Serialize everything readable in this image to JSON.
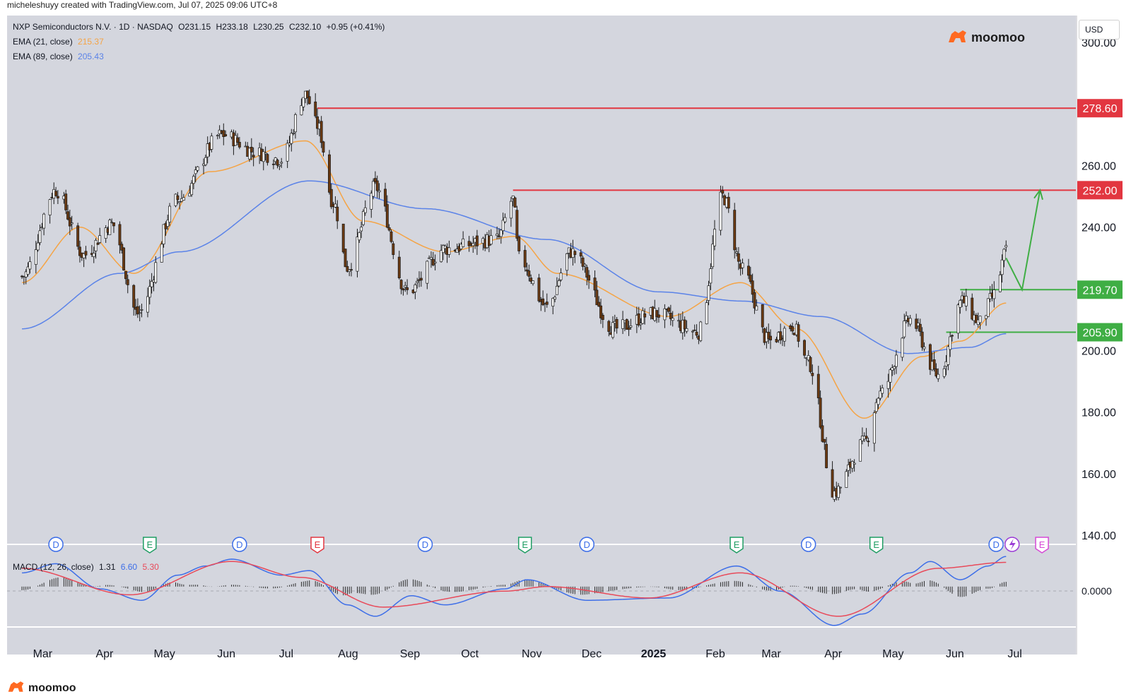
{
  "credit": "micheleshuyy created with TradingView.com, Jul 07, 2025 09:06 UTC+8",
  "legend": {
    "symbol": "NXP Semiconductors N.V. · 1D · NASDAQ",
    "open": "O231.15",
    "high": "H233.18",
    "low": "L230.25",
    "close": "C232.10",
    "change": "+0.95 (+0.41%)",
    "ema21_label": "EMA (21, close)",
    "ema21_value": "215.37",
    "ema89_label": "EMA (89, close)",
    "ema89_value": "205.43"
  },
  "brand": {
    "name": "moomoo",
    "logo_icon": "moomoo-bull-icon"
  },
  "currency": "USD",
  "macd": {
    "label": "MACD (12, 26, close)",
    "hist": "1.31",
    "macd": "6.60",
    "signal": "5.30",
    "zero_label": "0.0000"
  },
  "colors": {
    "up": "#ffffff",
    "down": "#6b3a12",
    "ema21": "#f5a445",
    "ema89": "#5b83e8",
    "resistance": "#e23640",
    "support": "#3fae44",
    "projection": "#3fae44",
    "macd_line": "#3d6ee8",
    "signal_line": "#e84a5a",
    "bg": "#d4d6de"
  },
  "chart_data": [
    {
      "type": "candlestick",
      "title": "",
      "x_tick_labels": [
        "Mar",
        "Apr",
        "May",
        "Jun",
        "Jul",
        "Aug",
        "Sep",
        "Oct",
        "Nov",
        "Dec",
        "2025",
        "Feb",
        "Mar",
        "Apr",
        "May",
        "Jun",
        "Jul"
      ],
      "y_tick_labels": [
        "300.00",
        "260.00",
        "240.00",
        "200.00",
        "180.00",
        "160.00",
        "140.00"
      ],
      "ylim": [
        135,
        305
      ],
      "series": [
        {
          "name": "NXP",
          "anchors": [
            {
              "date": "2024-02-26",
              "value": 224
            },
            {
              "date": "2024-03-14",
              "value": 252
            },
            {
              "date": "2024-03-28",
              "value": 231
            },
            {
              "date": "2024-04-11",
              "value": 241
            },
            {
              "date": "2024-04-24",
              "value": 212
            },
            {
              "date": "2024-05-14",
              "value": 249
            },
            {
              "date": "2024-06-05",
              "value": 270
            },
            {
              "date": "2024-06-24",
              "value": 264
            },
            {
              "date": "2024-07-05",
              "value": 262
            },
            {
              "date": "2024-07-17",
              "value": 283
            },
            {
              "date": "2024-07-23",
              "value": 273
            },
            {
              "date": "2024-07-31",
              "value": 248
            },
            {
              "date": "2024-08-07",
              "value": 227
            },
            {
              "date": "2024-08-21",
              "value": 253
            },
            {
              "date": "2024-09-06",
              "value": 219
            },
            {
              "date": "2024-09-25",
              "value": 233
            },
            {
              "date": "2024-10-21",
              "value": 236
            },
            {
              "date": "2024-10-29",
              "value": 249
            },
            {
              "date": "2024-11-01",
              "value": 230
            },
            {
              "date": "2024-11-15",
              "value": 214
            },
            {
              "date": "2024-11-27",
              "value": 232
            },
            {
              "date": "2024-12-19",
              "value": 207
            },
            {
              "date": "2025-01-08",
              "value": 212
            },
            {
              "date": "2025-01-30",
              "value": 206
            },
            {
              "date": "2025-02-11",
              "value": 250
            },
            {
              "date": "2025-02-21",
              "value": 226
            },
            {
              "date": "2025-03-06",
              "value": 203
            },
            {
              "date": "2025-03-18",
              "value": 208
            },
            {
              "date": "2025-03-26",
              "value": 196
            },
            {
              "date": "2025-04-08",
              "value": 154
            },
            {
              "date": "2025-04-23",
              "value": 170
            },
            {
              "date": "2025-05-01",
              "value": 186
            },
            {
              "date": "2025-05-16",
              "value": 210
            },
            {
              "date": "2025-05-30",
              "value": 192
            },
            {
              "date": "2025-06-11",
              "value": 216
            },
            {
              "date": "2025-06-20",
              "value": 209
            },
            {
              "date": "2025-06-27",
              "value": 218
            },
            {
              "date": "2025-07-03",
              "value": 232
            }
          ]
        },
        {
          "name": "EMA (21, close)",
          "points": [
            {
              "date": "2024-02-26",
              "value": 222
            },
            {
              "date": "2024-03-26",
              "value": 240
            },
            {
              "date": "2024-04-22",
              "value": 225
            },
            {
              "date": "2024-05-30",
              "value": 258
            },
            {
              "date": "2024-07-17",
              "value": 268
            },
            {
              "date": "2024-08-15",
              "value": 242
            },
            {
              "date": "2024-09-25",
              "value": 232
            },
            {
              "date": "2024-10-30",
              "value": 237
            },
            {
              "date": "2024-11-20",
              "value": 225
            },
            {
              "date": "2025-01-15",
              "value": 211
            },
            {
              "date": "2025-02-20",
              "value": 222
            },
            {
              "date": "2025-03-20",
              "value": 207
            },
            {
              "date": "2025-04-23",
              "value": 178
            },
            {
              "date": "2025-05-22",
              "value": 198
            },
            {
              "date": "2025-06-10",
              "value": 203
            },
            {
              "date": "2025-07-03",
              "value": 215.37
            }
          ]
        },
        {
          "name": "EMA (89, close)",
          "points": [
            {
              "date": "2024-02-26",
              "value": 207
            },
            {
              "date": "2024-04-15",
              "value": 225
            },
            {
              "date": "2024-05-15",
              "value": 232
            },
            {
              "date": "2024-07-19",
              "value": 255
            },
            {
              "date": "2024-09-15",
              "value": 246
            },
            {
              "date": "2024-11-15",
              "value": 236
            },
            {
              "date": "2025-01-10",
              "value": 219
            },
            {
              "date": "2025-02-21",
              "value": 216
            },
            {
              "date": "2025-04-01",
              "value": 211
            },
            {
              "date": "2025-05-15",
              "value": 199
            },
            {
              "date": "2025-06-15",
              "value": 201
            },
            {
              "date": "2025-07-03",
              "value": 205.43
            }
          ]
        }
      ],
      "levels": [
        {
          "label": "278.60",
          "value": 278.6,
          "kind": "resistance",
          "from": "2024-07-23"
        },
        {
          "label": "252.00",
          "value": 252.0,
          "kind": "resistance",
          "from": "2024-10-29"
        },
        {
          "label": "219.70",
          "value": 219.7,
          "kind": "support",
          "from": "2025-06-10"
        },
        {
          "label": "205.90",
          "value": 205.9,
          "kind": "support",
          "from": "2025-06-03"
        }
      ],
      "projection": [
        {
          "date": "2025-07-03",
          "value": 230
        },
        {
          "date": "2025-07-11",
          "value": 219.7
        },
        {
          "date": "2025-07-20",
          "value": 252
        }
      ],
      "events": [
        {
          "label": "D",
          "date": "2024-03-14"
        },
        {
          "label": "E",
          "date": "2024-04-30"
        },
        {
          "label": "D",
          "date": "2024-06-14"
        },
        {
          "label": "E",
          "date": "2024-07-23"
        },
        {
          "label": "D",
          "date": "2024-09-15"
        },
        {
          "label": "E",
          "date": "2024-11-04"
        },
        {
          "label": "D",
          "date": "2024-12-05"
        },
        {
          "label": "E",
          "date": "2025-02-18"
        },
        {
          "label": "D",
          "date": "2025-03-26"
        },
        {
          "label": "E",
          "date": "2025-04-29"
        },
        {
          "label": "D",
          "date": "2025-06-28"
        },
        {
          "label": "E",
          "date": "2025-07-21"
        }
      ]
    },
    {
      "type": "macd",
      "title": "MACD (12, 26, close)",
      "ylim": [
        -9,
        8
      ],
      "series": [
        {
          "name": "MACD",
          "points": [
            {
              "date": "2024-02-26",
              "value": 3
            },
            {
              "date": "2024-03-14",
              "value": 5
            },
            {
              "date": "2024-04-05",
              "value": -0.5
            },
            {
              "date": "2024-04-26",
              "value": -3
            },
            {
              "date": "2024-05-14",
              "value": 2.5
            },
            {
              "date": "2024-05-28",
              "value": 4.5
            },
            {
              "date": "2024-06-10",
              "value": 6
            },
            {
              "date": "2024-07-05",
              "value": 2.5
            },
            {
              "date": "2024-07-19",
              "value": 3.5
            },
            {
              "date": "2024-08-07",
              "value": -4
            },
            {
              "date": "2024-08-21",
              "value": -6.5
            },
            {
              "date": "2024-09-08",
              "value": -2
            },
            {
              "date": "2024-09-25",
              "value": -4
            },
            {
              "date": "2024-10-25",
              "value": -0.5
            },
            {
              "date": "2024-11-05",
              "value": 1.5
            },
            {
              "date": "2024-12-05",
              "value": -3
            },
            {
              "date": "2025-01-15",
              "value": -2.5
            },
            {
              "date": "2025-02-18",
              "value": 4.5
            },
            {
              "date": "2025-03-12",
              "value": -1
            },
            {
              "date": "2025-04-08",
              "value": -8.5
            },
            {
              "date": "2025-04-22",
              "value": -6
            },
            {
              "date": "2025-05-16",
              "value": 3
            },
            {
              "date": "2025-05-26",
              "value": 5.5
            },
            {
              "date": "2025-06-10",
              "value": 1.5
            },
            {
              "date": "2025-06-24",
              "value": 4.5
            },
            {
              "date": "2025-07-03",
              "value": 6.6
            }
          ]
        },
        {
          "name": "Signal",
          "points": [
            {
              "date": "2024-02-26",
              "value": 4
            },
            {
              "date": "2024-04-20",
              "value": -1.8
            },
            {
              "date": "2024-06-10",
              "value": 5.5
            },
            {
              "date": "2024-07-15",
              "value": 2
            },
            {
              "date": "2024-08-25",
              "value": -4.5
            },
            {
              "date": "2024-10-25",
              "value": -1
            },
            {
              "date": "2024-11-15",
              "value": 0
            },
            {
              "date": "2025-01-05",
              "value": -2.5
            },
            {
              "date": "2025-02-20",
              "value": 3
            },
            {
              "date": "2025-04-10",
              "value": -6.5
            },
            {
              "date": "2025-05-30",
              "value": 4
            },
            {
              "date": "2025-07-03",
              "value": 5.3
            }
          ]
        }
      ]
    }
  ]
}
